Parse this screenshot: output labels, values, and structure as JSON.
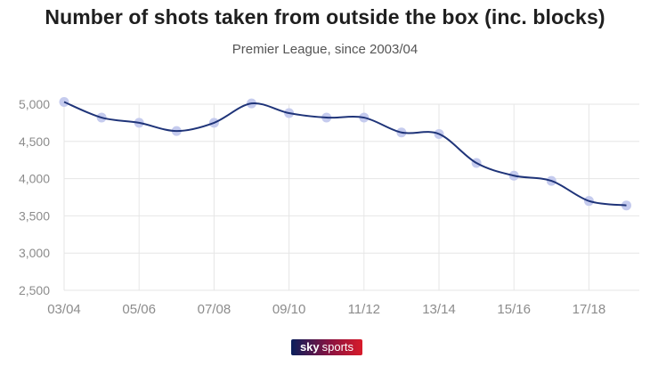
{
  "header": {
    "title": "Number of shots taken from outside the box (inc. blocks)",
    "subtitle": "Premier League, since 2003/04"
  },
  "logo": {
    "sky": "sky",
    "sports": "sports"
  },
  "colors": {
    "line": "#1f3479",
    "marker": "#c5cbee",
    "grid": "#e6e6e6",
    "tick": "#8c8c8c"
  },
  "chart_data": {
    "type": "line",
    "title": "Number of shots taken from outside the box (inc. blocks)",
    "subtitle": "Premier League, since 2003/04",
    "xlabel": "",
    "ylabel": "",
    "ylim": [
      2500,
      5000
    ],
    "yticks": [
      2500,
      3000,
      3500,
      4000,
      4500,
      5000
    ],
    "ytick_labels": [
      "2,500",
      "3,000",
      "3,500",
      "4,000",
      "4,500",
      "5,000"
    ],
    "x_tick_labels": [
      "03/04",
      "05/06",
      "07/08",
      "09/10",
      "11/12",
      "13/14",
      "15/16",
      "17/18"
    ],
    "grid": true,
    "legend": "none",
    "series": [
      {
        "x": [
          "03/04",
          "04/05",
          "05/06",
          "06/07",
          "07/08",
          "08/09",
          "09/10",
          "10/11",
          "11/12",
          "12/13",
          "13/14",
          "14/15",
          "15/16",
          "16/17",
          "17/18",
          "18/19"
        ],
        "values": [
          5030,
          4820,
          4750,
          4640,
          4750,
          5010,
          4880,
          4820,
          4820,
          4620,
          4600,
          4210,
          4040,
          3970,
          3700,
          3640
        ]
      }
    ]
  }
}
